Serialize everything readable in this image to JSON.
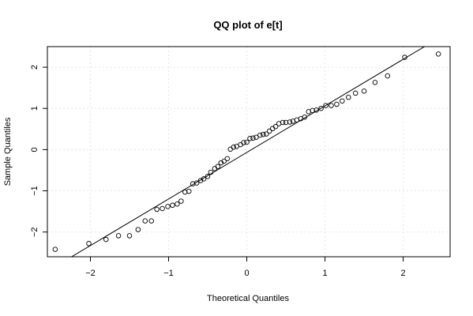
{
  "chart_data": {
    "type": "scatter",
    "title": "QQ plot of e[t]",
    "xlabel": "Theoretical Quantiles",
    "ylabel": "Sample Quantiles",
    "xlim": [
      -2.55,
      2.6
    ],
    "ylim": [
      -2.6,
      2.5
    ],
    "x_ticks": [
      -2,
      -1,
      0,
      1,
      2
    ],
    "y_ticks": [
      -2,
      -1,
      0,
      1,
      2
    ],
    "x_tick_labels": [
      "−2",
      "−1",
      "0",
      "1",
      "2"
    ],
    "y_tick_labels": [
      "−2",
      "−1",
      "0",
      "1",
      "2"
    ],
    "grid": true,
    "reference_line": {
      "x": [
        -2.55,
        2.6
      ],
      "y": [
        -2.95,
        2.87
      ]
    },
    "points": [
      [
        -2.45,
        -2.42
      ],
      [
        -2.02,
        -2.28
      ],
      [
        -1.8,
        -2.18
      ],
      [
        -1.64,
        -2.09
      ],
      [
        -1.5,
        -2.09
      ],
      [
        -1.39,
        -1.94
      ],
      [
        -1.3,
        -1.73
      ],
      [
        -1.22,
        -1.73
      ],
      [
        -1.15,
        -1.45
      ],
      [
        -1.08,
        -1.43
      ],
      [
        -1.01,
        -1.38
      ],
      [
        -0.95,
        -1.35
      ],
      [
        -0.89,
        -1.32
      ],
      [
        -0.84,
        -1.25
      ],
      [
        -0.79,
        -1.03
      ],
      [
        -0.74,
        -1.01
      ],
      [
        -0.69,
        -0.83
      ],
      [
        -0.64,
        -0.81
      ],
      [
        -0.59,
        -0.75
      ],
      [
        -0.55,
        -0.71
      ],
      [
        -0.5,
        -0.65
      ],
      [
        -0.46,
        -0.55
      ],
      [
        -0.41,
        -0.46
      ],
      [
        -0.37,
        -0.41
      ],
      [
        -0.33,
        -0.32
      ],
      [
        -0.29,
        -0.28
      ],
      [
        -0.25,
        -0.22
      ],
      [
        -0.21,
        0.01
      ],
      [
        -0.17,
        0.06
      ],
      [
        -0.13,
        0.08
      ],
      [
        -0.08,
        0.12
      ],
      [
        -0.04,
        0.17
      ],
      [
        0.0,
        0.18
      ],
      [
        0.04,
        0.27
      ],
      [
        0.08,
        0.28
      ],
      [
        0.12,
        0.3
      ],
      [
        0.17,
        0.35
      ],
      [
        0.21,
        0.37
      ],
      [
        0.25,
        0.38
      ],
      [
        0.29,
        0.45
      ],
      [
        0.33,
        0.51
      ],
      [
        0.37,
        0.56
      ],
      [
        0.41,
        0.63
      ],
      [
        0.46,
        0.66
      ],
      [
        0.5,
        0.66
      ],
      [
        0.55,
        0.67
      ],
      [
        0.59,
        0.69
      ],
      [
        0.64,
        0.72
      ],
      [
        0.69,
        0.75
      ],
      [
        0.74,
        0.79
      ],
      [
        0.79,
        0.92
      ],
      [
        0.84,
        0.95
      ],
      [
        0.89,
        0.96
      ],
      [
        0.95,
        1.0
      ],
      [
        1.01,
        1.07
      ],
      [
        1.08,
        1.07
      ],
      [
        1.15,
        1.1
      ],
      [
        1.22,
        1.18
      ],
      [
        1.3,
        1.27
      ],
      [
        1.39,
        1.37
      ],
      [
        1.5,
        1.42
      ],
      [
        1.64,
        1.63
      ],
      [
        1.8,
        1.79
      ],
      [
        2.02,
        2.24
      ],
      [
        2.45,
        2.32
      ]
    ]
  }
}
